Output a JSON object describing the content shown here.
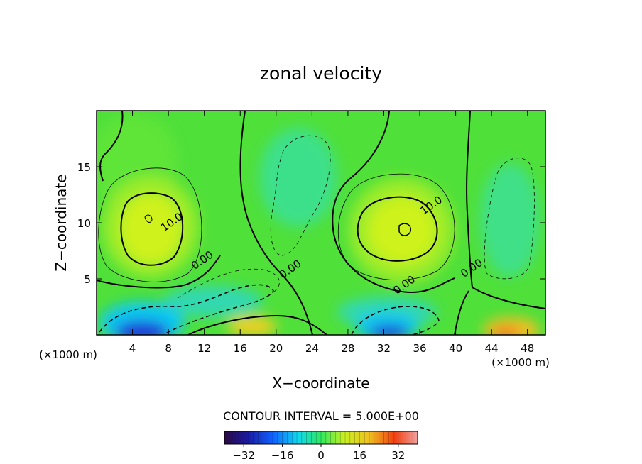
{
  "chart_data": {
    "type": "contour",
    "title": "zonal velocity",
    "xlabel": "X−coordinate",
    "ylabel": "Z−coordinate",
    "x_unit": "(×1000 m)",
    "z_unit": "(×1000 m)",
    "xlim": [
      0,
      50
    ],
    "ylim": [
      0,
      20
    ],
    "x_ticks": [
      4,
      8,
      12,
      16,
      20,
      24,
      28,
      32,
      36,
      40,
      44,
      48
    ],
    "y_ticks": [
      5,
      10,
      15
    ],
    "contour_interval_text": "CONTOUR INTERVAL = 5.000E+00",
    "contour_labels": [
      {
        "text": "10.0",
        "x": 8.6,
        "z": 9.8
      },
      {
        "text": "0.00",
        "x": 12.0,
        "z": 6.4
      },
      {
        "text": "0.00",
        "x": 21.8,
        "z": 5.6
      },
      {
        "text": "10.0",
        "x": 37.5,
        "z": 11.3
      },
      {
        "text": "0.00",
        "x": 42.0,
        "z": 5.7
      },
      {
        "text": "0.00",
        "x": 34.5,
        "z": 4.2
      }
    ],
    "colorbar": {
      "range": [
        -40,
        40
      ],
      "ticks": [
        -32,
        -16,
        0,
        16,
        32
      ],
      "tick_labels": [
        "−32",
        "−16",
        "0",
        "16",
        "32"
      ]
    },
    "colors": {
      "background_field": "#4fe03a",
      "positive_core": "#d7f21e",
      "strong_positive": "#f08020",
      "negative": "#33e08a",
      "strong_negative": "#1a2fd0"
    }
  }
}
